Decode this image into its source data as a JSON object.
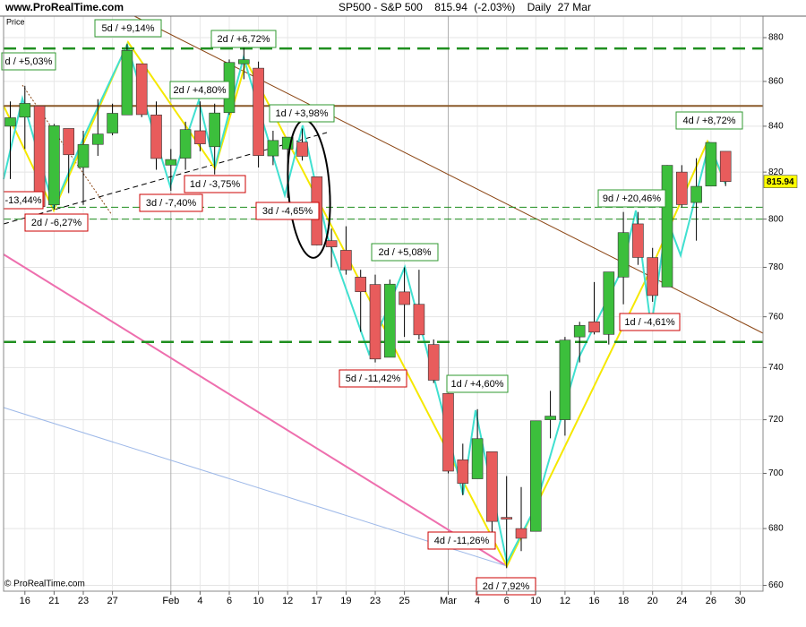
{
  "header": {
    "site": "www.ProRealTime.com",
    "copyright": "© ProRealTime.com",
    "panel_label": "Price"
  },
  "chart_data": {
    "type": "candlestick",
    "title": "SP500 - S&P 500",
    "change": "(-2.03%)",
    "period": "Daily",
    "date": "27 Mar",
    "categories": [
      null,
      "16",
      null,
      "21",
      null,
      "23",
      null,
      "27",
      null,
      null,
      null,
      "Feb",
      null,
      "4",
      null,
      "6",
      null,
      "10",
      null,
      "12",
      null,
      "17",
      null,
      "19",
      null,
      "23",
      null,
      "25",
      null,
      null,
      "Mar",
      null,
      "4",
      null,
      "6",
      null,
      "10",
      null,
      "12",
      null,
      "16",
      null,
      "18",
      null,
      "20",
      null,
      "24",
      null,
      "26",
      null,
      "30"
    ],
    "open": [
      840,
      844,
      849,
      806,
      839,
      822,
      832,
      837,
      845,
      868,
      845,
      823,
      826,
      838,
      831,
      846,
      868,
      866,
      827,
      830,
      833,
      818,
      791,
      787,
      776,
      773,
      744,
      770,
      765,
      749,
      730,
      705,
      698,
      708,
      684,
      680,
      679,
      720,
      720,
      752,
      758,
      753,
      776,
      798,
      784,
      772,
      820,
      807,
      814,
      829,
      null
    ],
    "high": [
      851,
      858,
      849,
      841,
      839,
      838,
      852,
      850,
      877,
      868,
      851,
      830,
      842,
      851,
      850,
      870,
      876,
      869,
      838,
      835,
      839,
      818,
      796,
      797,
      779,
      777,
      775,
      780,
      779,
      751,
      730,
      711,
      724,
      708,
      699,
      695,
      719,
      731,
      752,
      758,
      774,
      778,
      803,
      803,
      788,
      823,
      823,
      826,
      832,
      829,
      null
    ],
    "low": [
      817,
      830,
      805,
      804,
      811,
      806,
      827,
      836,
      845,
      844,
      821,
      812,
      821,
      829,
      819,
      845,
      861,
      822,
      823,
      809,
      825,
      789,
      780,
      777,
      754,
      742,
      744,
      752,
      751,
      734,
      700,
      692,
      698,
      677,
      666,
      672,
      679,
      713,
      714,
      742,
      753,
      749,
      765,
      781,
      766,
      772,
      805,
      791,
      814,
      814,
      null
    ],
    "close": [
      843.74,
      850.12,
      805.22,
      840.24,
      827.5,
      831.95,
      836.57,
      845.71,
      874.09,
      845.14,
      825.88,
      825.44,
      838.51,
      832.23,
      845.85,
      868.6,
      869.89,
      827.16,
      833.74,
      835.19,
      826.84,
      789.17,
      788.42,
      778.94,
      770.05,
      743.33,
      773.14,
      764.9,
      752.83,
      735.09,
      700.82,
      696.33,
      712.87,
      682.55,
      683.38,
      676.53,
      719.6,
      721.36,
      750.74,
      756.55,
      753.89,
      778.12,
      794.35,
      784.04,
      768.54,
      822.92,
      806.12,
      813.88,
      832.86,
      815.94,
      null
    ],
    "up_color": "#3cbf3c",
    "down_color": "#e85c5c",
    "log_scale": true,
    "ylim": [
      658,
      890
    ],
    "yticks": [
      660,
      680,
      700,
      720,
      740,
      760,
      780,
      800,
      820,
      840,
      860,
      880
    ],
    "grid": true,
    "levels": [
      {
        "value": 875,
        "color": "#1f8f1f",
        "style": "dashed-thick"
      },
      {
        "value": 849,
        "color": "#8b5a2b",
        "style": "solid"
      },
      {
        "value": 805,
        "color": "#1f8f1f",
        "style": "dashed-thin"
      },
      {
        "value": 800,
        "color": "#1f8f1f",
        "style": "dashed-thin"
      },
      {
        "value": 750,
        "color": "#1f8f1f",
        "style": "dashed-thick"
      }
    ],
    "annotations": [
      {
        "text": "d / +5,03%",
        "color": "#2f9a2f"
      },
      {
        "text": "5d / +9,14%",
        "color": "#2f9a2f"
      },
      {
        "text": "2d / +6,72%",
        "color": "#2f9a2f"
      },
      {
        "text": "2d / +4,80%",
        "color": "#2f9a2f"
      },
      {
        "text": "1d / +3,98%",
        "color": "#2f9a2f"
      },
      {
        "text": "-13,44%",
        "color": "#cc0000"
      },
      {
        "text": "2d / -6,27%",
        "color": "#cc0000"
      },
      {
        "text": "1d / -3,75%",
        "color": "#cc0000"
      },
      {
        "text": "3d / -7,40%",
        "color": "#cc0000"
      },
      {
        "text": "3d / -4,65%",
        "color": "#cc0000"
      },
      {
        "text": "2d / +5,08%",
        "color": "#2f9a2f"
      },
      {
        "text": "5d / -11,42%",
        "color": "#cc0000"
      },
      {
        "text": "1d / +4,60%",
        "color": "#2f9a2f"
      },
      {
        "text": "4d / -11,26%",
        "color": "#cc0000"
      },
      {
        "text": "2d / 7,92%",
        "color": "#cc0000"
      },
      {
        "text": "9d / +20,46%",
        "color": "#2f9a2f"
      },
      {
        "text": "4d / +8,72%",
        "color": "#2f9a2f"
      },
      {
        "text": "1d / -4,61%",
        "color": "#cc0000"
      }
    ]
  }
}
